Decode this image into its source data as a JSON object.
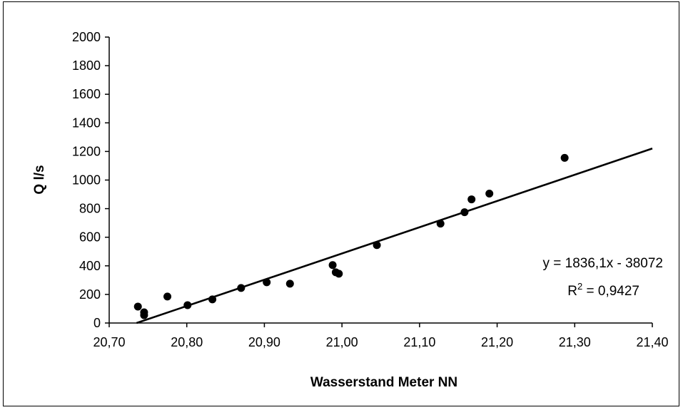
{
  "chart_data": {
    "type": "scatter",
    "title": "",
    "xlabel": "Wasserstand Meter NN",
    "ylabel": "Q l/s",
    "xlim": [
      20.7,
      21.4
    ],
    "ylim": [
      0,
      2000
    ],
    "x_ticks": [
      20.7,
      20.8,
      20.9,
      21.0,
      21.1,
      21.2,
      21.3,
      21.4
    ],
    "x_tick_labels": [
      "20,70",
      "20,80",
      "20,90",
      "21,00",
      "21,10",
      "21,20",
      "21,30",
      "21,40"
    ],
    "y_ticks": [
      0,
      200,
      400,
      600,
      800,
      1000,
      1200,
      1400,
      1600,
      1800,
      2000
    ],
    "y_tick_labels": [
      "0",
      "200",
      "400",
      "600",
      "800",
      "1000",
      "1200",
      "1400",
      "1600",
      "1800",
      "2000"
    ],
    "grid": false,
    "series": [
      {
        "x": [
          20.737,
          20.745,
          20.745,
          20.775,
          20.801,
          20.833,
          20.87,
          20.903,
          20.933,
          20.988,
          20.992,
          20.996,
          21.045,
          21.127,
          21.158,
          21.167,
          21.19,
          21.287
        ],
        "y": [
          115,
          75,
          55,
          185,
          125,
          165,
          245,
          285,
          275,
          405,
          355,
          345,
          545,
          695,
          775,
          865,
          905,
          1155
        ],
        "color": "#000000"
      }
    ],
    "trendline": {
      "type": "linear",
      "slope": 1836.1,
      "intercept": -38072,
      "equation_label": "y = 1836,1x - 38072",
      "r2_prefix": "R",
      "r2_exponent": "2",
      "r2_value": " = 0,9427"
    }
  }
}
